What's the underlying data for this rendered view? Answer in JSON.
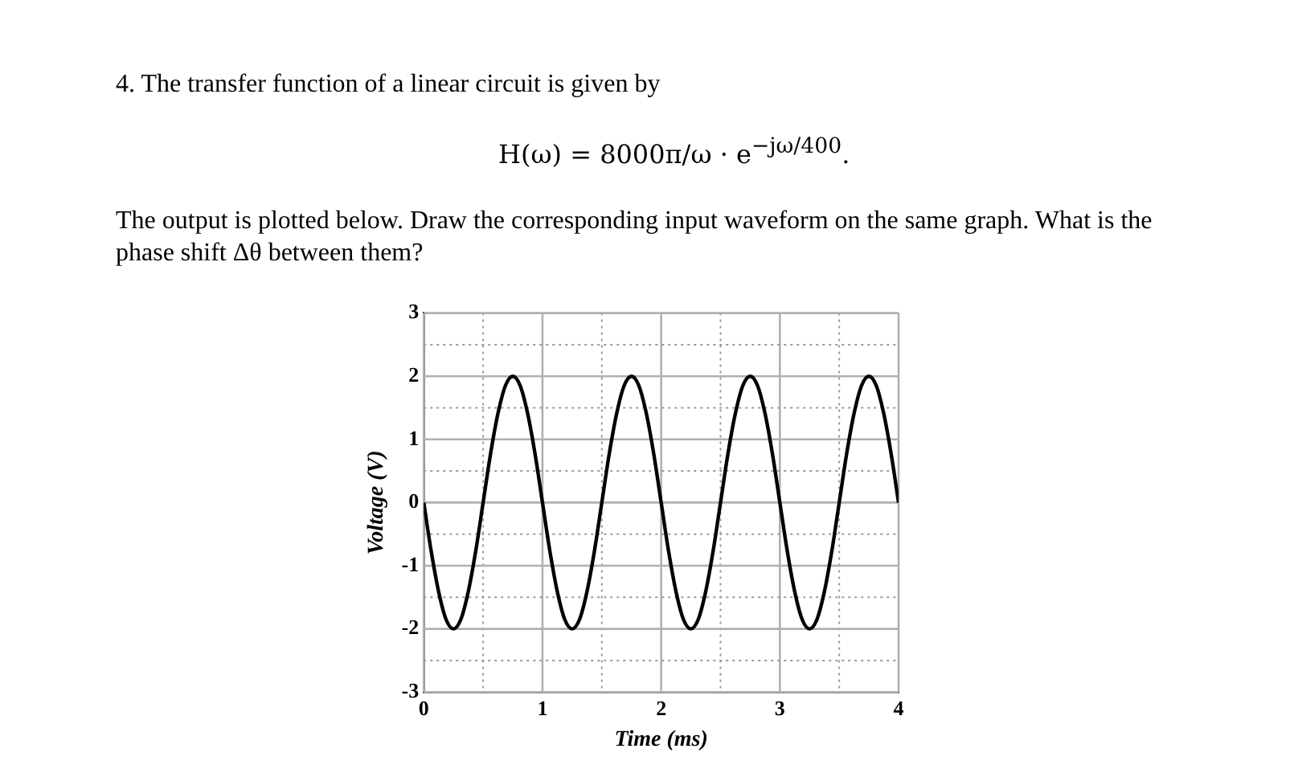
{
  "chart_data": {
    "type": "line",
    "title": "4. The transfer function of a linear circuit is given by",
    "annotations": [
      "H(ω) = 8000π/ω · e$^{−jω/400}$.",
      "The output is plotted below. Draw the corresponding input waveform on the same graph. What is the phase shift Δθ between them?"
    ],
    "xlabel": "Time (ms)",
    "ylabel": "Voltage (V)",
    "x": [
      0,
      0.0625,
      0.125,
      0.1875,
      0.25,
      0.3125,
      0.375,
      0.4375,
      0.5,
      0.5625,
      0.625,
      0.6875,
      0.75,
      0.8125,
      0.875,
      0.9375,
      1,
      1.0625,
      1.125,
      1.1875,
      1.25,
      1.3125,
      1.375,
      1.4375,
      1.5,
      1.5625,
      1.625,
      1.6875,
      1.75,
      1.8125,
      1.875,
      1.9375,
      2,
      2.0625,
      2.125,
      2.1875,
      2.25,
      2.3125,
      2.375,
      2.4375,
      2.5,
      2.5625,
      2.625,
      2.6875,
      2.75,
      2.8125,
      2.875,
      2.9375,
      3,
      3.0625,
      3.125,
      3.1875,
      3.25,
      3.3125,
      3.375,
      3.4375,
      3.5,
      3.5625,
      3.625,
      3.6875,
      3.75,
      3.8125,
      3.875,
      3.9375,
      4
    ],
    "series": [
      {
        "color": "#000000",
        "values": [
          0,
          -0.77,
          -1.41,
          -1.85,
          -2,
          -1.85,
          -1.41,
          -0.77,
          0,
          0.77,
          1.41,
          1.85,
          2,
          1.85,
          1.41,
          0.77,
          0,
          -0.77,
          -1.41,
          -1.85,
          -2,
          -1.85,
          -1.41,
          -0.77,
          0,
          0.77,
          1.41,
          1.85,
          2,
          1.85,
          1.41,
          0.77,
          0,
          -0.77,
          -1.41,
          -1.85,
          -2,
          -1.85,
          -1.41,
          -0.77,
          0,
          0.77,
          1.41,
          1.85,
          2,
          1.85,
          1.41,
          0.77,
          0,
          -0.77,
          -1.41,
          -1.85,
          -2,
          -1.85,
          -1.41,
          -0.77,
          0,
          0.77,
          1.41,
          1.85,
          2,
          1.85,
          1.41,
          0.77,
          0
        ]
      }
    ],
    "xlim": [
      0,
      4
    ],
    "xticks": [
      0,
      {
        "value": 0.5,
        "label": null
      },
      1,
      {
        "value": 1.5,
        "label": null
      },
      2,
      {
        "value": 2.5,
        "label": null
      },
      3,
      {
        "value": 3.5,
        "label": null
      },
      4
    ],
    "ylim": [
      -3,
      3
    ],
    "yticks": [
      -3,
      {
        "value": -2.5,
        "label": null
      },
      -2,
      {
        "value": -1.5,
        "label": null
      },
      -1,
      {
        "value": -0.5,
        "label": null
      },
      0,
      {
        "value": 0.5,
        "label": null
      },
      1,
      {
        "value": 1.5,
        "label": null
      },
      2,
      {
        "value": 2.5,
        "label": null
      },
      3
    ],
    "grid": true,
    "legend": false,
    "marker": "none",
    "line_style": "solid"
  }
}
